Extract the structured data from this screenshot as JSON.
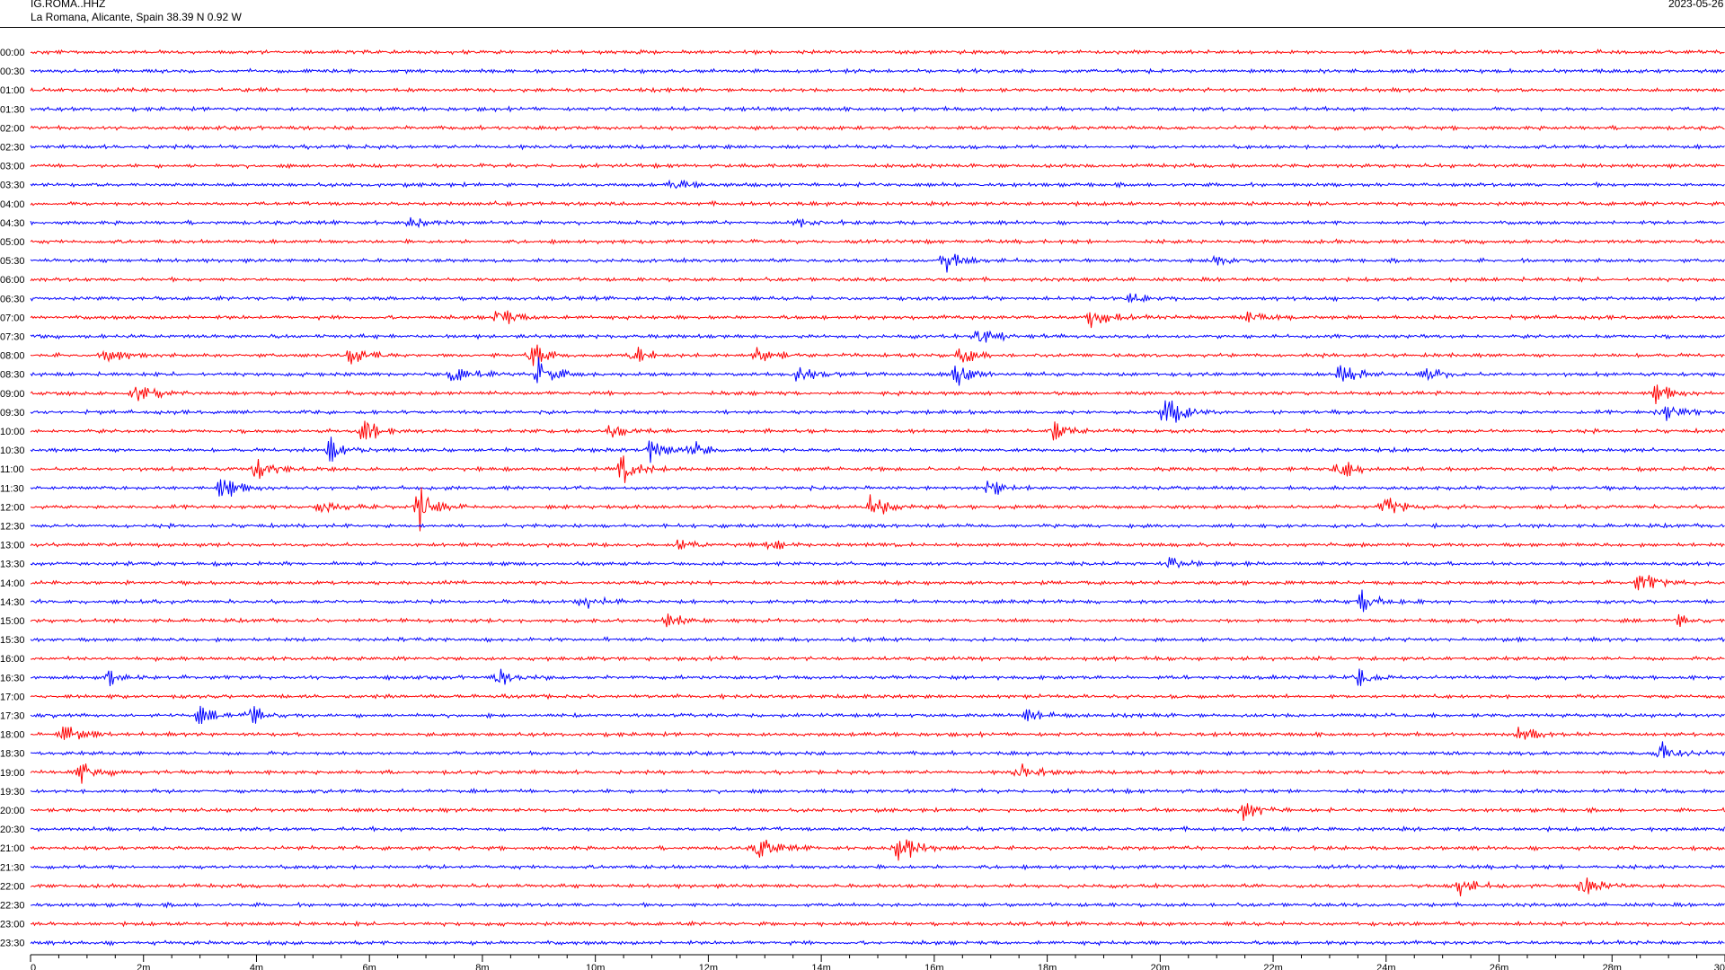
{
  "header": {
    "station": "IG.ROMA..HHZ",
    "location": "La Romana, Alicante, Spain  38.39 N 0.92 W",
    "date": "2023-05-26"
  },
  "colors": {
    "trace_even": "#ff0000",
    "trace_odd": "#0000ff",
    "axis": "#000000"
  },
  "chart_data": {
    "type": "line",
    "title": "",
    "xlabel": "",
    "ylabel": "",
    "xlim_minutes": [
      0,
      30
    ],
    "x_ticks": [
      "0",
      "2m",
      "4m",
      "6m",
      "8m",
      "10m",
      "12m",
      "14m",
      "16m",
      "18m",
      "20m",
      "22m",
      "24m",
      "26m",
      "28m",
      "30"
    ],
    "rows": [
      "00:00",
      "00:30",
      "01:00",
      "01:30",
      "02:00",
      "02:30",
      "03:00",
      "03:30",
      "04:00",
      "04:30",
      "05:00",
      "05:30",
      "06:00",
      "06:30",
      "07:00",
      "07:30",
      "08:00",
      "08:30",
      "09:00",
      "09:30",
      "10:00",
      "10:30",
      "11:00",
      "11:30",
      "12:00",
      "12:30",
      "13:00",
      "13:30",
      "14:00",
      "14:30",
      "15:00",
      "15:30",
      "16:00",
      "16:30",
      "17:00",
      "17:30",
      "18:00",
      "18:30",
      "19:00",
      "19:30",
      "20:00",
      "20:30",
      "21:00",
      "21:30",
      "22:00",
      "22:30",
      "23:00",
      "23:30"
    ],
    "row_colors": "alternating red / blue",
    "events": [
      {
        "row": "03:30",
        "minute": 11.4,
        "amplitude": 0.3
      },
      {
        "row": "04:30",
        "minute": 6.7,
        "amplitude": 0.35
      },
      {
        "row": "04:30",
        "minute": 13.6,
        "amplitude": 0.25
      },
      {
        "row": "05:30",
        "minute": 16.2,
        "amplitude": 0.7
      },
      {
        "row": "05:30",
        "minute": 21.0,
        "amplitude": 0.35
      },
      {
        "row": "06:30",
        "minute": 19.5,
        "amplitude": 0.3
      },
      {
        "row": "07:00",
        "minute": 8.3,
        "amplitude": 0.6
      },
      {
        "row": "07:00",
        "minute": 18.8,
        "amplitude": 0.75
      },
      {
        "row": "07:00",
        "minute": 21.5,
        "amplitude": 0.4
      },
      {
        "row": "07:30",
        "minute": 16.8,
        "amplitude": 0.75
      },
      {
        "row": "08:00",
        "minute": 1.4,
        "amplitude": 0.6
      },
      {
        "row": "08:00",
        "minute": 5.7,
        "amplitude": 0.6
      },
      {
        "row": "08:00",
        "minute": 8.9,
        "amplitude": 0.75
      },
      {
        "row": "08:00",
        "minute": 10.7,
        "amplitude": 0.5
      },
      {
        "row": "08:00",
        "minute": 12.9,
        "amplitude": 0.55
      },
      {
        "row": "08:00",
        "minute": 16.5,
        "amplitude": 0.6
      },
      {
        "row": "08:30",
        "minute": 7.5,
        "amplitude": 0.7
      },
      {
        "row": "08:30",
        "minute": 9.0,
        "amplitude": 1.0
      },
      {
        "row": "08:30",
        "minute": 13.6,
        "amplitude": 0.5
      },
      {
        "row": "08:30",
        "minute": 16.4,
        "amplitude": 0.7
      },
      {
        "row": "08:30",
        "minute": 23.2,
        "amplitude": 0.7
      },
      {
        "row": "08:30",
        "minute": 24.7,
        "amplitude": 0.6
      },
      {
        "row": "09:00",
        "minute": 1.9,
        "amplitude": 0.75
      },
      {
        "row": "09:00",
        "minute": 28.8,
        "amplitude": 0.6
      },
      {
        "row": "09:30",
        "minute": 20.1,
        "amplitude": 1.1
      },
      {
        "row": "09:30",
        "minute": 28.9,
        "amplitude": 0.65
      },
      {
        "row": "10:00",
        "minute": 5.9,
        "amplitude": 0.8
      },
      {
        "row": "10:00",
        "minute": 10.3,
        "amplitude": 0.4
      },
      {
        "row": "10:00",
        "minute": 18.1,
        "amplitude": 0.65
      },
      {
        "row": "10:30",
        "minute": 5.3,
        "amplitude": 0.75
      },
      {
        "row": "10:30",
        "minute": 11.0,
        "amplitude": 0.7
      },
      {
        "row": "10:30",
        "minute": 11.7,
        "amplitude": 0.5
      },
      {
        "row": "11:00",
        "minute": 4.0,
        "amplitude": 0.7
      },
      {
        "row": "11:00",
        "minute": 10.5,
        "amplitude": 0.9
      },
      {
        "row": "11:00",
        "minute": 23.2,
        "amplitude": 0.65
      },
      {
        "row": "11:30",
        "minute": 3.4,
        "amplitude": 0.75
      },
      {
        "row": "11:30",
        "minute": 17.0,
        "amplitude": 0.55
      },
      {
        "row": "12:00",
        "minute": 5.1,
        "amplitude": 0.7
      },
      {
        "row": "12:00",
        "minute": 6.9,
        "amplitude": 1.5
      },
      {
        "row": "12:00",
        "minute": 14.9,
        "amplitude": 0.75
      },
      {
        "row": "12:00",
        "minute": 24.0,
        "amplitude": 0.6
      },
      {
        "row": "13:00",
        "minute": 11.5,
        "amplitude": 0.35
      },
      {
        "row": "13:00",
        "minute": 13.1,
        "amplitude": 0.3
      },
      {
        "row": "13:30",
        "minute": 20.2,
        "amplitude": 0.5
      },
      {
        "row": "14:00",
        "minute": 28.5,
        "amplitude": 0.7
      },
      {
        "row": "14:30",
        "minute": 9.8,
        "amplitude": 0.5
      },
      {
        "row": "14:30",
        "minute": 23.6,
        "amplitude": 0.7
      },
      {
        "row": "15:00",
        "minute": 11.3,
        "amplitude": 0.55
      },
      {
        "row": "15:00",
        "minute": 29.2,
        "amplitude": 0.3
      },
      {
        "row": "16:30",
        "minute": 1.4,
        "amplitude": 0.5
      },
      {
        "row": "16:30",
        "minute": 8.3,
        "amplitude": 0.5
      },
      {
        "row": "16:30",
        "minute": 23.5,
        "amplitude": 0.55
      },
      {
        "row": "17:30",
        "minute": 3.0,
        "amplitude": 0.5
      },
      {
        "row": "17:30",
        "minute": 3.9,
        "amplitude": 0.6
      },
      {
        "row": "17:30",
        "minute": 17.7,
        "amplitude": 0.5
      },
      {
        "row": "18:00",
        "minute": 0.6,
        "amplitude": 0.6
      },
      {
        "row": "18:00",
        "minute": 26.4,
        "amplitude": 0.5
      },
      {
        "row": "18:30",
        "minute": 28.9,
        "amplitude": 0.8
      },
      {
        "row": "19:00",
        "minute": 0.9,
        "amplitude": 0.7
      },
      {
        "row": "19:00",
        "minute": 17.5,
        "amplitude": 0.6
      },
      {
        "row": "20:00",
        "minute": 21.5,
        "amplitude": 0.6
      },
      {
        "row": "21:00",
        "minute": 12.9,
        "amplitude": 0.75
      },
      {
        "row": "21:00",
        "minute": 15.4,
        "amplitude": 1.0
      },
      {
        "row": "22:00",
        "minute": 25.3,
        "amplitude": 0.6
      },
      {
        "row": "22:00",
        "minute": 27.5,
        "amplitude": 0.65
      }
    ],
    "grid": false,
    "legend": "none"
  }
}
